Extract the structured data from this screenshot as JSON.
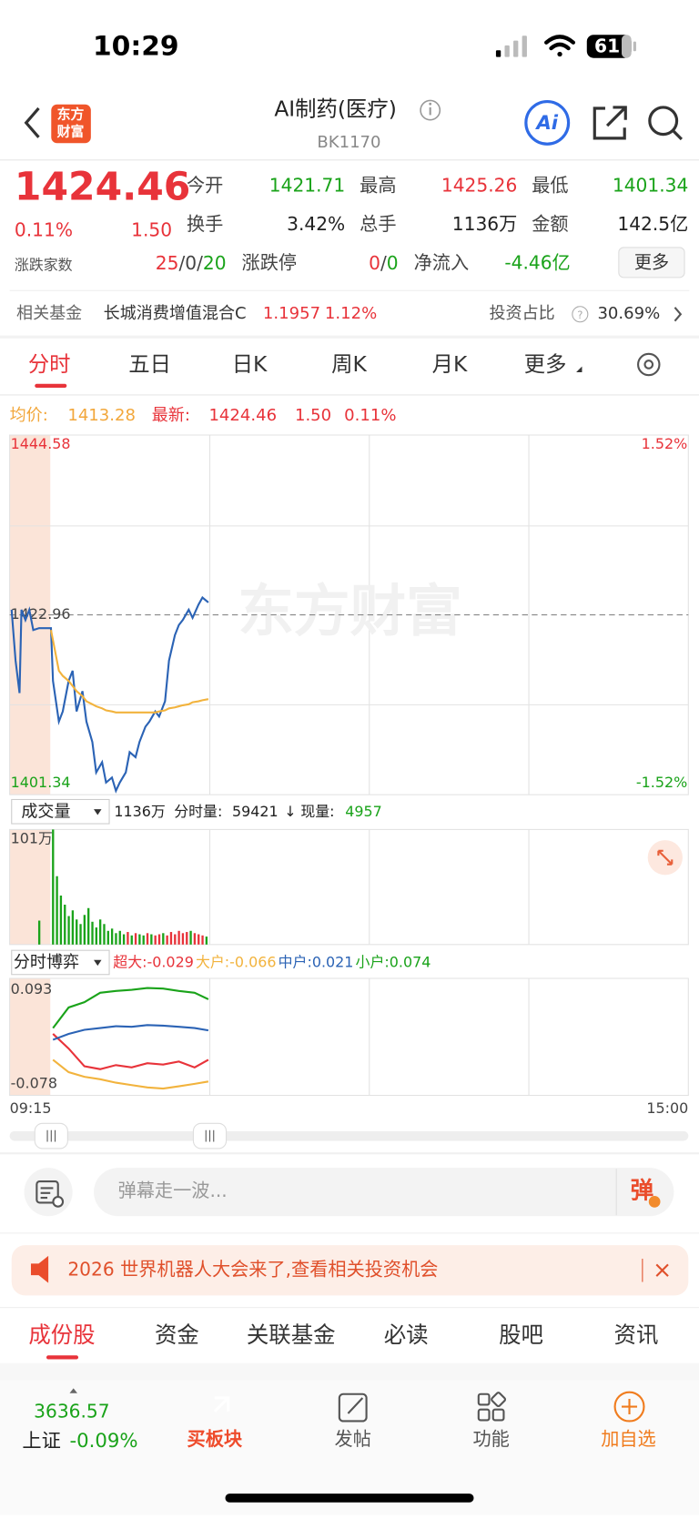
{
  "status": {
    "time": "10:29",
    "battery": "61"
  },
  "header": {
    "logo": [
      "东方",
      "财富"
    ],
    "title": "AI制药(医疗)",
    "code": "BK1170"
  },
  "quote": {
    "price": "1424.46",
    "pct": "0.11%",
    "change": "1.50",
    "stats": [
      {
        "label": "今开",
        "value": "1421.71"
      },
      {
        "label": "最高",
        "value": "1425.26"
      },
      {
        "label": "最低",
        "value": "1401.34"
      },
      {
        "label": "换手",
        "value": "3.42%"
      },
      {
        "label": "总手",
        "value": "1136万"
      },
      {
        "label": "金额",
        "value": "142.5亿"
      }
    ],
    "breadth": {
      "label": "涨跌家数",
      "parts": [
        "25",
        "/",
        "0",
        "/",
        "20"
      ]
    },
    "limit": {
      "label": "涨跌停",
      "parts": [
        "0",
        "/",
        "0"
      ]
    },
    "inflow": {
      "label": "净流入",
      "value": "-4.46亿"
    },
    "more": "更多"
  },
  "fund": {
    "label": "相关基金",
    "name": "长城消费增值混合C",
    "nav": "1.1957",
    "pct": "1.12%",
    "ratio_label": "投资占比",
    "ratio": "30.69%"
  },
  "tabs": [
    "分时",
    "五日",
    "日K",
    "周K",
    "月K",
    "更多"
  ],
  "summary": {
    "avg_label": "均价:",
    "avg": "1413.28",
    "last_label": "最新:",
    "last": "1424.46",
    "change": "1.50",
    "pct": "0.11%"
  },
  "watermark": "东方财富",
  "intraday": {
    "type": "line",
    "xlim": [
      0,
      345
    ],
    "ylim": [
      1401.34,
      1444.58
    ],
    "yticks": [
      1401.34,
      1422.96,
      1444.58
    ],
    "y2lim": [
      -1.52,
      1.52
    ],
    "y2ticks": [
      {
        "value": -1.52,
        "label": "-1.52%"
      },
      {
        "value": 1.52,
        "label": "1.52%"
      }
    ],
    "x": [
      1,
      3,
      5,
      6,
      8,
      10,
      12,
      15,
      21,
      22,
      25,
      27,
      30,
      32,
      34,
      37,
      39,
      42,
      44,
      47,
      49,
      52,
      54,
      56,
      59,
      61,
      64,
      66,
      69,
      71,
      74,
      76,
      79,
      81,
      84,
      86,
      88,
      91,
      93,
      96,
      98,
      101
    ],
    "series": [
      {
        "color": "#2b63b5",
        "values": [
          1423.58,
          1417.4,
          1413.45,
          1423.58,
          1422.34,
          1423.58,
          1421.11,
          1421.35,
          1421.35,
          1414.93,
          1409.99,
          1411.22,
          1414.93,
          1416.17,
          1411.22,
          1413.69,
          1409.99,
          1407.52,
          1403.81,
          1405.05,
          1402.58,
          1403.19,
          1401.58,
          1402.58,
          1403.81,
          1406.28,
          1405.66,
          1407.52,
          1409.37,
          1409.99,
          1411.22,
          1410.61,
          1412.46,
          1417.4,
          1420.49,
          1421.73,
          1422.34,
          1423.58,
          1422.59,
          1424.2,
          1425.06,
          1424.46
        ]
      },
      {
        "color": "#f2b33d",
        "values": [
          null,
          null,
          null,
          null,
          null,
          null,
          null,
          null,
          1421.11,
          1419.87,
          1416.17,
          1415.55,
          1414.93,
          1414.31,
          1413.69,
          1413.08,
          1412.46,
          1412.09,
          1411.84,
          1411.6,
          1411.35,
          1411.22,
          1411.1,
          1411.1,
          1411.1,
          1411.1,
          1411.1,
          1411.1,
          1411.1,
          1411.1,
          1411.1,
          1411.22,
          1411.35,
          1411.6,
          1411.72,
          1411.84,
          1411.97,
          1412.09,
          1412.34,
          1412.46,
          1412.59,
          1412.71
        ]
      }
    ]
  },
  "volume": {
    "type": "bar",
    "selector": "成交量",
    "total": "1136万",
    "minute_label": "分时量:",
    "minute": "59421",
    "arrow": "↓",
    "now_label": "现量:",
    "now": "4957",
    "xlim": [
      0,
      345
    ],
    "ylim": [
      0,
      101
    ],
    "yticks": [
      {
        "value": 101,
        "label": "101万"
      }
    ],
    "x": [
      15,
      22,
      24,
      26,
      28,
      30,
      32,
      34,
      36,
      38,
      40,
      42,
      44,
      46,
      48,
      50,
      52,
      54,
      56,
      58,
      60,
      62,
      64,
      66,
      68,
      70,
      72,
      74,
      76,
      78,
      80,
      82,
      84,
      86,
      88,
      90,
      92,
      94,
      96,
      98,
      100
    ],
    "values": [
      21,
      101,
      60,
      43,
      35,
      25,
      30,
      22,
      18,
      26,
      32,
      20,
      15,
      22,
      18,
      12,
      14,
      10,
      12,
      9,
      11,
      8,
      10,
      9,
      8,
      10,
      9,
      8,
      9,
      10,
      8,
      11,
      9,
      12,
      10,
      11,
      12,
      10,
      9,
      8,
      7
    ],
    "colors": [
      "#1aa31a",
      "#1aa31a",
      "#1aa31a",
      "#1aa31a",
      "#1aa31a",
      "#1aa31a",
      "#1aa31a",
      "#1aa31a",
      "#1aa31a",
      "#1aa31a",
      "#1aa31a",
      "#1aa31a",
      "#1aa31a",
      "#1aa31a",
      "#1aa31a",
      "#1aa31a",
      "#1aa31a",
      "#1aa31a",
      "#1aa31a",
      "#1aa31a",
      "#e8333a",
      "#1aa31a",
      "#e8333a",
      "#1aa31a",
      "#1aa31a",
      "#e8333a",
      "#1aa31a",
      "#e8333a",
      "#e8333a",
      "#1aa31a",
      "#e8333a",
      "#e8333a",
      "#e8333a",
      "#e8333a",
      "#e8333a",
      "#e8333a",
      "#1aa31a",
      "#e8333a",
      "#e8333a",
      "#e8333a",
      "#1aa31a"
    ]
  },
  "flow": {
    "type": "line",
    "selector": "分时博弈",
    "xlim": [
      0,
      345
    ],
    "ylim": [
      -0.078,
      0.093
    ],
    "yticks": [
      -0.078,
      0.093
    ],
    "x": [
      22,
      30,
      38,
      46,
      54,
      62,
      70,
      78,
      86,
      94,
      101
    ],
    "series": [
      {
        "name": "超大:",
        "last": "-0.029",
        "color": "#e8333a",
        "values": [
          0.015,
          -0.01,
          -0.04,
          -0.045,
          -0.038,
          -0.042,
          -0.035,
          -0.037,
          -0.032,
          -0.042,
          -0.029
        ]
      },
      {
        "name": "大户:",
        "last": "-0.066",
        "color": "#f2b33d",
        "values": [
          -0.029,
          -0.05,
          -0.058,
          -0.062,
          -0.068,
          -0.072,
          -0.076,
          -0.078,
          -0.074,
          -0.07,
          -0.066
        ]
      },
      {
        "name": "中户:",
        "last": "0.021",
        "color": "#2b63b5",
        "values": [
          0.005,
          0.015,
          0.022,
          0.025,
          0.028,
          0.027,
          0.03,
          0.029,
          0.027,
          0.025,
          0.021
        ]
      },
      {
        "name": "小户:",
        "last": "0.074",
        "color": "#1aa31a",
        "values": [
          0.025,
          0.06,
          0.069,
          0.085,
          0.088,
          0.09,
          0.093,
          0.092,
          0.088,
          0.085,
          0.074
        ]
      }
    ],
    "xticks": [
      {
        "value": 0,
        "label": "09:15"
      },
      {
        "value": 345,
        "label": "15:00"
      }
    ]
  },
  "comment": {
    "placeholder": "弹幕走一波...",
    "button": "弹"
  },
  "banner": "2026 世界机器人大会来了,查看相关投资机会",
  "subtabs": [
    "成份股",
    "资金",
    "关联基金",
    "必读",
    "股吧",
    "资讯"
  ],
  "bottom": {
    "index_value": "3636.57",
    "index_name": "上证",
    "index_pct": "-0.09%",
    "nav": [
      "买板块",
      "发帖",
      "功能",
      "加自选"
    ]
  }
}
